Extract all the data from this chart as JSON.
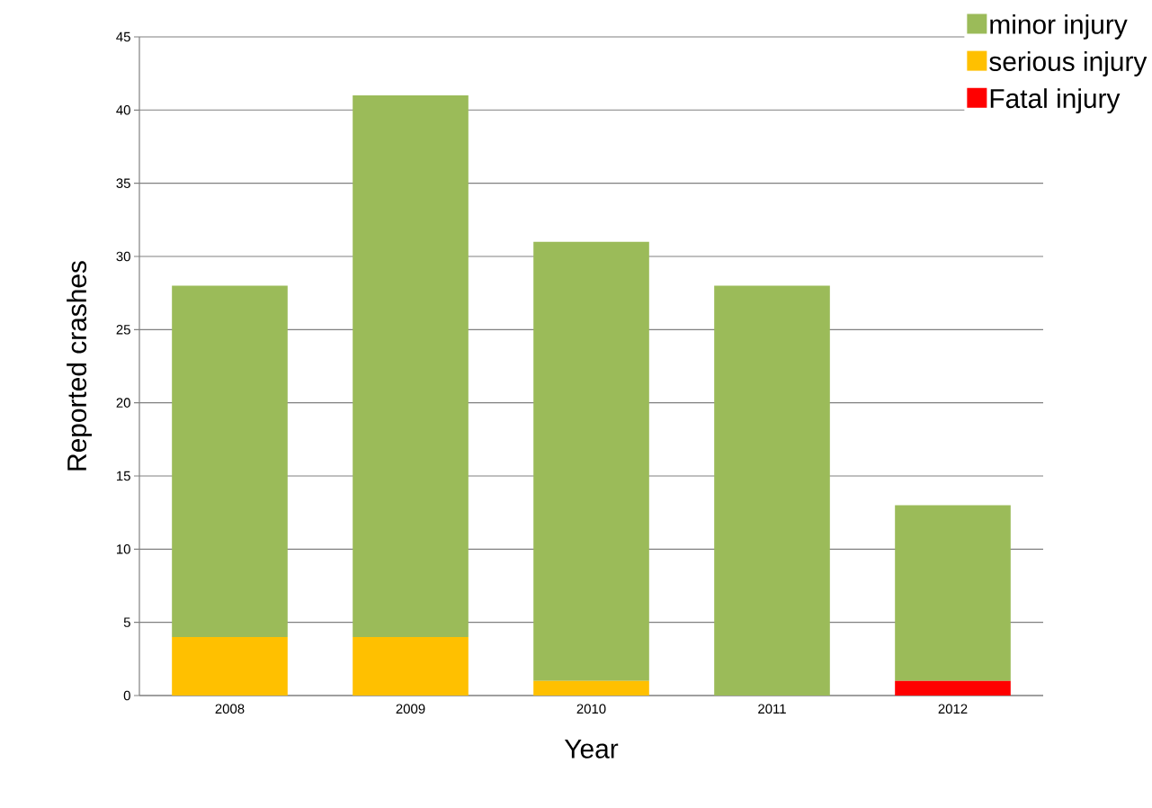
{
  "chart_data": {
    "type": "bar",
    "stacked": true,
    "xlabel": "Year",
    "ylabel": "Reported crashes",
    "categories": [
      "2008",
      "2009",
      "2010",
      "2011",
      "2012"
    ],
    "series": [
      {
        "name": "Fatal injury",
        "color": "#ff0000",
        "values": [
          0,
          0,
          0,
          0,
          1
        ]
      },
      {
        "name": "serious injury",
        "color": "#ffc000",
        "values": [
          4,
          4,
          1,
          0,
          0
        ]
      },
      {
        "name": "minor injury",
        "color": "#9bbb59",
        "values": [
          24,
          37,
          30,
          28,
          12
        ]
      }
    ],
    "ylim": [
      0,
      45
    ],
    "yticks": [
      0,
      5,
      10,
      15,
      20,
      25,
      30,
      35,
      40,
      45
    ],
    "grid": "y",
    "legend": "top right"
  }
}
